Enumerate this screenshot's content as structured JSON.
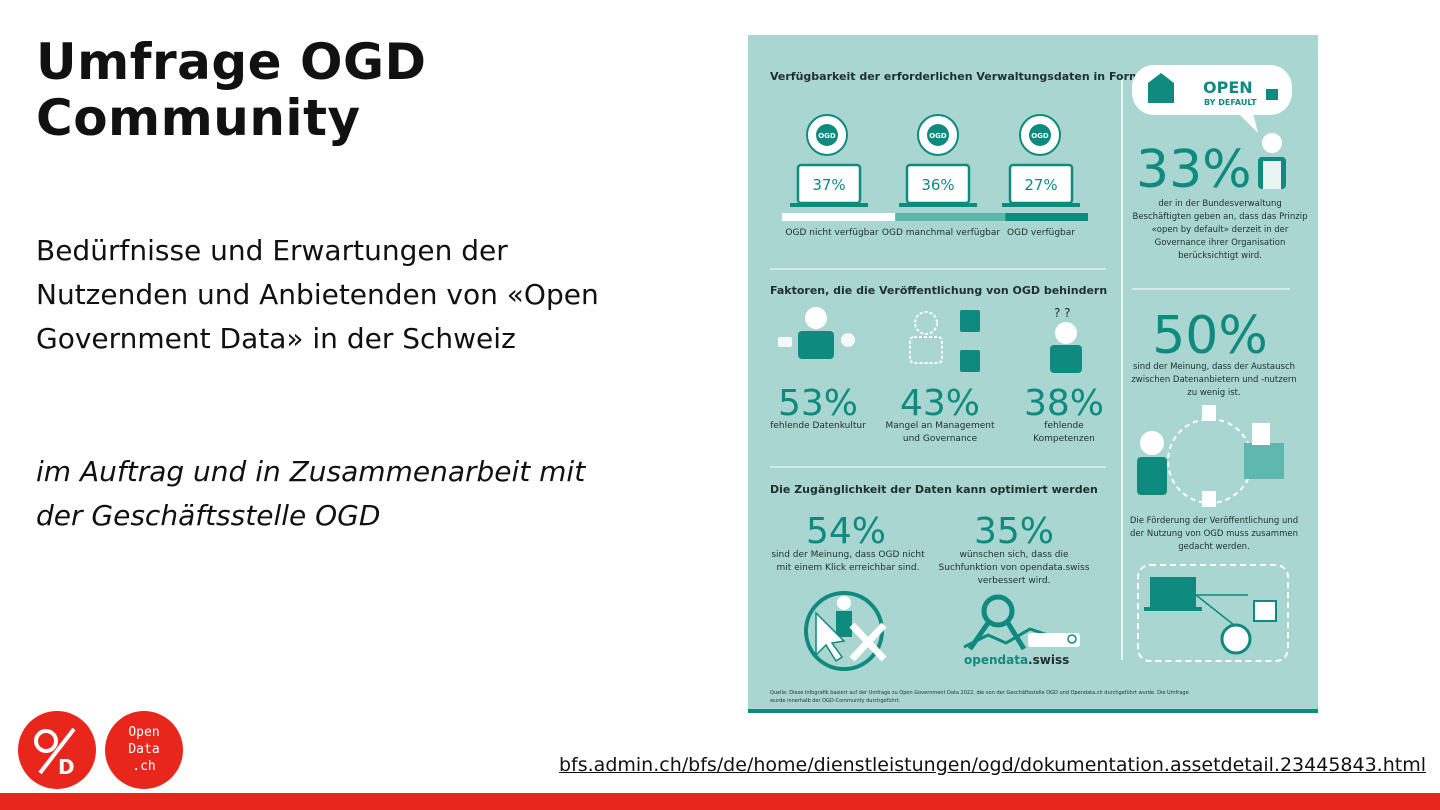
{
  "slide": {
    "title": "Umfrage OGD Community",
    "subtitle": "Bedürfnisse und Erwartungen der Nutzenden und Anbietenden von «Open Government Data» in der Schweiz",
    "credit": "im Auftrag und in Zusammenarbeit mit der Geschäftsstelle OGD",
    "source_link": "bfs.admin.ch/bfs/de/home/dienstleistungen/ogd/dokumentation.assetdetail.23445843.html"
  },
  "colors": {
    "accent_red": "#e8261c",
    "infographic_bg": "#a9d6d0",
    "teal_dark": "#0e8a7e",
    "teal_mid": "#5fb8ad",
    "text_dark": "#1f2f2d",
    "white": "#ffffff"
  },
  "logos": {
    "ogd_mark": "OD",
    "opendata_text": "Open\nData\n.ch"
  },
  "infographic": {
    "section1": {
      "heading": "Verfügbarkeit der erforderlichen Verwaltungsdaten in Form von OGD",
      "items": [
        {
          "percent": "37%",
          "label": "OGD nicht verfügbar"
        },
        {
          "percent": "36%",
          "label": "OGD manchmal verfügbar"
        },
        {
          "percent": "27%",
          "label": "OGD verfügbar"
        }
      ],
      "shares": [
        37,
        36,
        27
      ]
    },
    "open_by_default": {
      "badge_line1": "OPEN",
      "badge_line2": "BY DEFAULT",
      "percent": "33%",
      "text": "der in der Bundesverwaltung Beschäftigten geben an, dass das Prinzip «open by default» derzeit in der Governance ihrer Organisation berücksichtigt wird."
    },
    "section2": {
      "heading": "Faktoren, die die Veröffentlichung von OGD behindern",
      "items": [
        {
          "percent": "53%",
          "label": "fehlende Datenkultur"
        },
        {
          "percent": "43%",
          "label": "Mangel an Management und Governance"
        },
        {
          "percent": "38%",
          "label": "fehlende Kompetenzen"
        }
      ]
    },
    "exchange": {
      "percent": "50%",
      "text": "sind der Meinung, dass der Austausch zwischen Datenanbietern und -nutzern zu wenig ist.",
      "note": "Die Förderung der Veröffentlichung und der Nutzung von OGD muss zusammen gedacht werden."
    },
    "section3": {
      "heading": "Die Zugänglichkeit der Daten kann optimiert werden",
      "items": [
        {
          "percent": "54%",
          "label": "sind der Meinung, dass OGD nicht mit einem Klick erreichbar sind."
        },
        {
          "percent": "35%",
          "label": "wünschen sich, dass die Suchfunktion von opendata.swiss verbessert wird."
        }
      ],
      "brand_part1": "opendata",
      "brand_part2": ".swiss"
    },
    "footnote": "Quelle: Diese Infografik basiert auf der Umfrage zu Open Government Data 2022, die von der Geschäftsstelle OGD und Opendata.ch durchgeführt wurde. Die Umfrage wurde innerhalb der OGD-Community durchgeführt."
  }
}
